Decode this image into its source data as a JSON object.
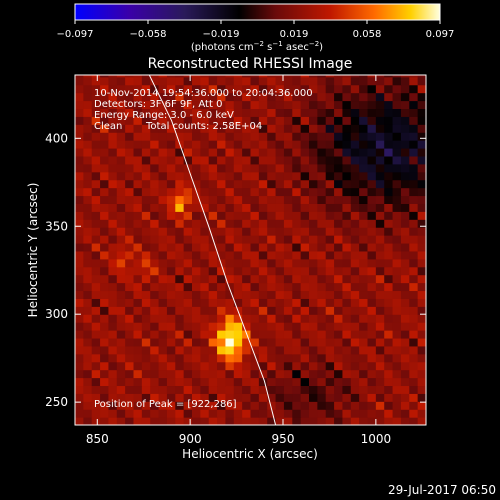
{
  "chart_data": {
    "type": "heatmap",
    "title": "Reconstructed RHESSI Image",
    "xlabel": "Heliocentric X (arcsec)",
    "ylabel": "Heliocentric Y (arcsec)",
    "xlim": [
      838,
      1027
    ],
    "ylim": [
      237,
      436
    ],
    "xticks": [
      850,
      900,
      950,
      1000
    ],
    "yticks": [
      250,
      300,
      350,
      400
    ],
    "colorbar": {
      "min": -0.097,
      "max": 0.097,
      "ticks": [
        "−0.097",
        "−0.058",
        "−0.019",
        "0.019",
        "0.058",
        "0.097"
      ],
      "units_main": "(photons cm",
      "units_sup1": "−2",
      "units_mid1": " s",
      "units_sup2": "−1",
      "units_mid2": " asec",
      "units_sup3": "−2",
      "units_end": ")",
      "colormap": [
        "#0000ff",
        "#3a00a8",
        "#2a1a5a",
        "#000000",
        "#6a0a0a",
        "#c01800",
        "#ff6a00",
        "#ffd000",
        "#ffffe0"
      ]
    },
    "annotations": {
      "time_range": "10-Nov-2014 19:54:36.000 to 20:04:36.000",
      "detectors": "Detectors: 3F 6F 9F, Att 0",
      "energy_range": "Energy Range: 3.0 - 6.0 keV",
      "method": "Clean",
      "total_counts": "Total counts: 2.58E+04",
      "peak": "Position of Peak = [922,286]"
    },
    "bright_sources": [
      {
        "x": 922,
        "y": 286,
        "intensity": 0.097
      },
      {
        "x": 895,
        "y": 364,
        "intensity": 0.07
      },
      {
        "x": 864,
        "y": 332,
        "intensity": 0.045
      },
      {
        "x": 876,
        "y": 326,
        "intensity": 0.04
      }
    ],
    "limb_curve": [
      [
        878,
        436
      ],
      [
        890,
        410
      ],
      [
        900,
        380
      ],
      [
        910,
        350
      ],
      [
        920,
        318
      ],
      [
        930,
        290
      ],
      [
        940,
        262
      ],
      [
        946,
        237
      ]
    ]
  },
  "footer": {
    "timestamp": "29-Jul-2017 06:50"
  }
}
